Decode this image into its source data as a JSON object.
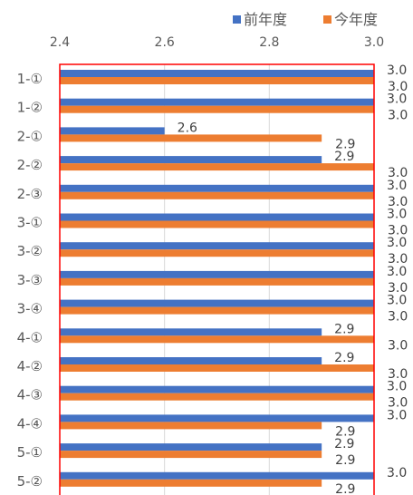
{
  "chart_data": {
    "type": "bar",
    "orientation": "horizontal",
    "categories": [
      "1-①",
      "1-②",
      "2-①",
      "2-②",
      "2-③",
      "3-①",
      "3-②",
      "3-③",
      "3-④",
      "4-①",
      "4-②",
      "4-③",
      "4-④",
      "5-①",
      "5-②"
    ],
    "series": [
      {
        "name": "前年度",
        "color": "#4472C4",
        "values": [
          3.0,
          3.0,
          2.6,
          2.9,
          3.0,
          3.0,
          3.0,
          3.0,
          3.0,
          2.9,
          2.9,
          3.0,
          3.0,
          2.9,
          3.0
        ]
      },
      {
        "name": "今年度",
        "color": "#ED7D31",
        "values": [
          3.0,
          3.0,
          2.9,
          3.0,
          3.0,
          3.0,
          3.0,
          3.0,
          3.0,
          3.0,
          3.0,
          3.0,
          2.9,
          2.9,
          2.9
        ]
      }
    ],
    "xlim": [
      2.4,
      3.0
    ],
    "x_ticks": [
      "2.4",
      "2.6",
      "2.8",
      "3.0"
    ],
    "x_axis_position": "top",
    "grid": true,
    "legend_position": "top-right",
    "data_labels": true,
    "plot_border_color": "#FF0000"
  }
}
